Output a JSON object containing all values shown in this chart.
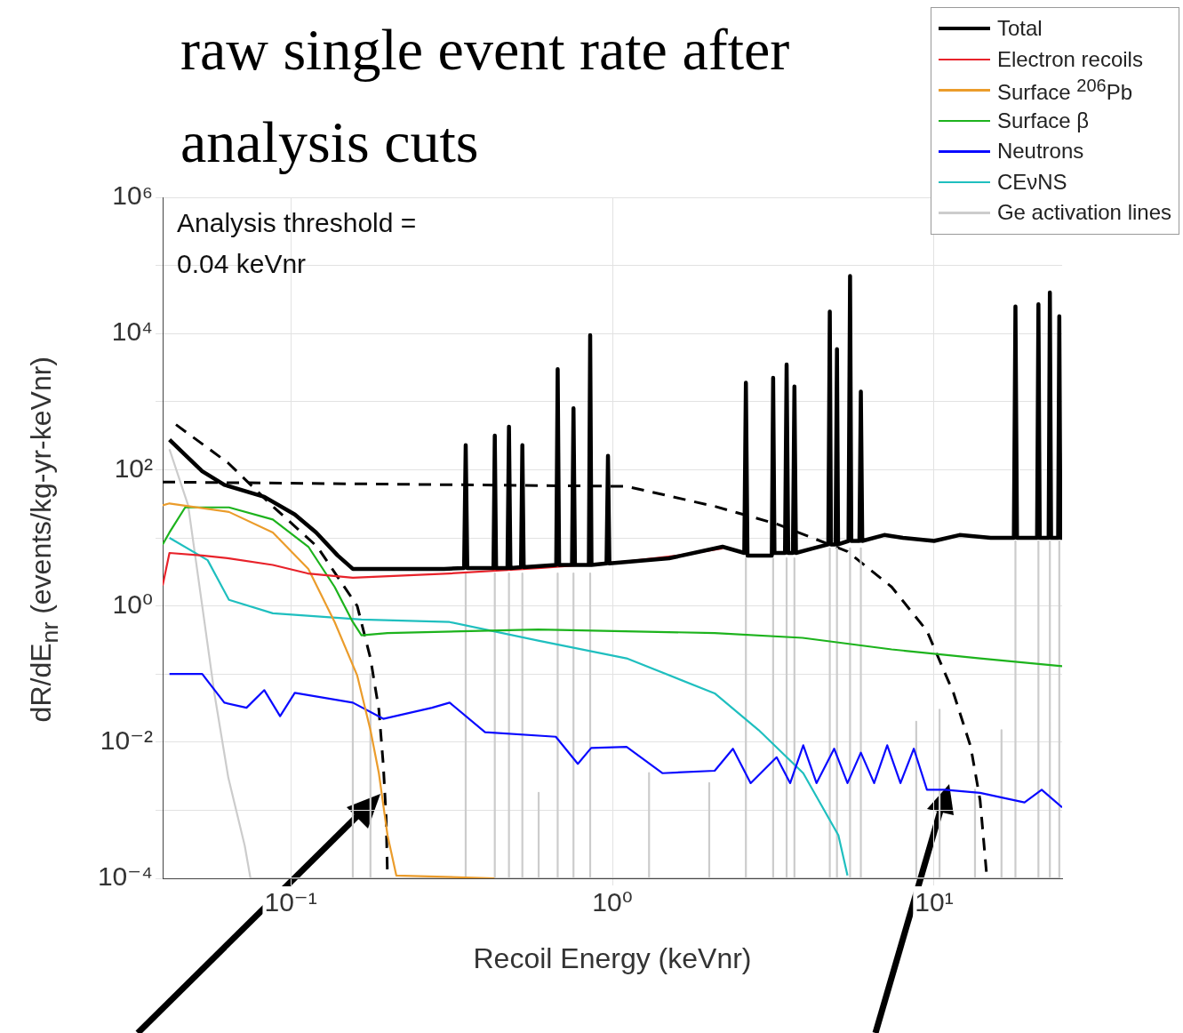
{
  "chart_data": {
    "type": "line",
    "title": "raw single event rate after analysis cuts",
    "xlabel": "Recoil Energy (keVnr)",
    "ylabel": "dR/dE$_{nr}$ (events/kg-yr-keVnr)",
    "log": "xy",
    "grid": true,
    "legend": "top right",
    "marker": "none",
    "xlim": [
      0.04,
      25
    ],
    "ylim": [
      0.0001,
      1000000
    ],
    "xticks": [
      {
        "value": 0.1,
        "label": "10⁻¹"
      },
      {
        "value": 1,
        "label": "10⁰"
      },
      {
        "value": 10,
        "label": "10¹"
      }
    ],
    "yticks": [
      {
        "value": 0.0001,
        "label": "10⁻⁴"
      },
      {
        "value": 0.001,
        "label": null
      },
      {
        "value": 0.01,
        "label": "10⁻²"
      },
      {
        "value": 0.1,
        "label": null
      },
      {
        "value": 1,
        "label": "10⁰"
      },
      {
        "value": 10,
        "label": null
      },
      {
        "value": 100,
        "label": "10²"
      },
      {
        "value": 1000,
        "label": null
      },
      {
        "value": 10000,
        "label": "10⁴"
      },
      {
        "value": 100000,
        "label": null
      },
      {
        "value": 1000000,
        "label": "10⁶"
      }
    ],
    "annotations": [
      "Analysis threshold =\n0.04 keVnr"
    ],
    "series": [
      {
        "name": "Total",
        "color": "#000000",
        "x": [
          0.042,
          0.0531,
          0.0622,
          0.0828,
          0.103,
          0.12,
          0.14,
          0.156,
          0.3,
          0.346,
          0.35,
          0.354,
          0.427,
          0.431,
          0.435,
          0.472,
          0.477,
          0.482,
          0.52,
          0.525,
          0.53,
          0.669,
          0.676,
          0.683,
          0.749,
          0.757,
          0.765,
          0.845,
          0.853,
          0.861,
          0.959,
          0.969,
          0.979,
          1.5,
          2.2,
          2.57,
          2.6,
          2.63,
          3.13,
          3.16,
          3.19,
          3.44,
          3.48,
          3.52,
          3.64,
          3.68,
          3.72,
          4.2,
          4.69,
          4.74,
          4.78,
          4.94,
          4.99,
          5.03,
          5.42,
          5.48,
          5.53,
          5.86,
          5.92,
          5.98,
          7,
          8,
          10,
          12,
          15,
          17.7,
          17.9,
          18.1,
          20.9,
          21.1,
          21.3,
          22.7,
          22.9,
          23.1,
          24.3,
          24.5,
          24.7,
          25
        ],
        "values": [
          275,
          95,
          60,
          40,
          22,
          12,
          5.5,
          3.5,
          3.5,
          3.6,
          230,
          3.6,
          3.6,
          316,
          3.6,
          3.6,
          430,
          3.6,
          3.7,
          230,
          3.7,
          4,
          3000,
          4,
          4,
          800,
          4,
          4,
          9500,
          4,
          4.2,
          160,
          4.2,
          5,
          7.4,
          6,
          1900,
          5.5,
          5.5,
          2240,
          6,
          6,
          3500,
          6,
          6,
          1670,
          6,
          7,
          8,
          21000,
          8,
          8,
          5900,
          8,
          9,
          70000,
          9,
          9,
          1400,
          9,
          11,
          10,
          9,
          11,
          10,
          10,
          25000,
          10,
          10,
          27000,
          10,
          10,
          40000,
          10,
          10,
          18000,
          10,
          10
        ]
      },
      {
        "name": "Electron recoils",
        "color": "#e8222a",
        "x": [
          0.04,
          0.042,
          0.0531,
          0.0643,
          0.088,
          0.113,
          0.156,
          0.312,
          0.6,
          1.107,
          1.6,
          2.2
        ],
        "values": [
          2,
          6,
          5.5,
          5,
          4,
          3,
          2.6,
          3,
          3.6,
          4.5,
          5.5,
          7
        ]
      },
      {
        "name": "Surface $^{206}$Pb",
        "color": "#eb9c2b",
        "x": [
          0.04,
          0.042,
          0.0643,
          0.088,
          0.1135,
          0.137,
          0.161,
          0.177,
          0.188,
          0.2,
          0.213,
          0.43
        ],
        "values": [
          30,
          32,
          24,
          12,
          3.5,
          0.58,
          0.095,
          0.015,
          0.0035,
          0.00043,
          0.00011,
          0.0001
        ]
      },
      {
        "name": "Surface β",
        "color": "#1db31d",
        "x": [
          0.04,
          0.042,
          0.047,
          0.0643,
          0.088,
          0.1135,
          0.137,
          0.156,
          0.166,
          0.2,
          0.588,
          2.08,
          3.9,
          7.38,
          13.9,
          25
        ],
        "values": [
          8,
          12,
          28,
          28,
          18.6,
          7.4,
          1.9,
          0.58,
          0.37,
          0.4,
          0.45,
          0.4,
          0.34,
          0.23,
          0.17,
          0.13
        ]
      },
      {
        "name": "Neutrons",
        "color": "#0a0aff",
        "x": [
          0.042,
          0.0531,
          0.0622,
          0.0729,
          0.0828,
          0.0927,
          0.103,
          0.156,
          0.194,
          0.275,
          0.312,
          0.402,
          0.667,
          0.781,
          0.859,
          1.107,
          1.43,
          2.08,
          2.37,
          2.69,
          3.24,
          3.57,
          3.92,
          4.31,
          4.89,
          5.38,
          5.92,
          6.51,
          7.15,
          7.86,
          8.65,
          9.5,
          10.8,
          13.9,
          19.1,
          21.6,
          25
        ],
        "values": [
          0.1,
          0.1,
          0.038,
          0.032,
          0.058,
          0.024,
          0.053,
          0.038,
          0.022,
          0.032,
          0.038,
          0.014,
          0.012,
          0.0048,
          0.0082,
          0.0085,
          0.0035,
          0.0038,
          0.008,
          0.0025,
          0.006,
          0.0025,
          0.009,
          0.0025,
          0.008,
          0.0025,
          0.007,
          0.0025,
          0.009,
          0.0025,
          0.008,
          0.002,
          0.002,
          0.0018,
          0.0013,
          0.002,
          0.0011
        ]
      },
      {
        "name": "CEνNS",
        "color": "#1fbfbf",
        "x": [
          0.042,
          0.0552,
          0.0643,
          0.088,
          0.166,
          0.312,
          0.588,
          1.107,
          2.08,
          2.85,
          3.92,
          5.04,
          5.38
        ],
        "values": [
          10,
          4.7,
          1.23,
          0.78,
          0.63,
          0.58,
          0.31,
          0.17,
          0.052,
          0.015,
          0.0035,
          0.00043,
          0.00011
        ]
      },
      {
        "name": "Ge activation lines",
        "color": "#cccccc",
        "x": [
          0.042,
          0.048,
          0.0531,
          0.058,
          0.064,
          0.072,
          0.075,
          0.156,
          0.156,
          0.156,
          0.177,
          0.177,
          0.177,
          0.35,
          0.35,
          0.35,
          0.431,
          0.431,
          0.431,
          0.477,
          0.477,
          0.477,
          0.525,
          0.525,
          0.525,
          0.59,
          0.59,
          0.59,
          0.676,
          0.676,
          0.676,
          0.757,
          0.757,
          0.757,
          0.853,
          0.853,
          0.853,
          1.3,
          1.3,
          1.3,
          2,
          2,
          2,
          2.6,
          2.6,
          2.6,
          3.16,
          3.16,
          3.16,
          3.48,
          3.48,
          3.48,
          3.68,
          3.68,
          3.68,
          4.74,
          4.74,
          4.74,
          4.99,
          4.99,
          4.99,
          5.48,
          5.48,
          5.48,
          5.92,
          5.92,
          5.92,
          8.8,
          8.8,
          8.8,
          10.4,
          10.4,
          10.4,
          13.4,
          13.4,
          13.4,
          16.2,
          16.2,
          16.2,
          17.9,
          17.9,
          17.9,
          21.1,
          21.1,
          21.1,
          22.9,
          22.9,
          22.9,
          24.5,
          24.5,
          24.5
        ],
        "values": [
          200,
          30,
          1,
          0.05,
          0.003,
          0.0003,
          0.0001,
          0.0001,
          1,
          0.0001,
          0.0001,
          0.1,
          0.0001,
          0.0001,
          3,
          0.0001,
          0.0001,
          3,
          0.0001,
          0.0001,
          3,
          0.0001,
          0.0001,
          3,
          0.0001,
          0.0001,
          0.0018,
          0.0001,
          0.0001,
          3,
          0.0001,
          0.0001,
          3,
          0.0001,
          0.0001,
          3,
          0.0001,
          0.0001,
          0.0035,
          0.0001,
          0.0001,
          0.0025,
          0.0001,
          0.0001,
          5,
          0.0001,
          0.0001,
          5,
          0.0001,
          0.0001,
          5,
          0.0001,
          0.0001,
          5,
          0.0001,
          0.0001,
          7,
          0.0001,
          0.0001,
          7,
          0.0001,
          0.0001,
          7,
          0.0001,
          0.0001,
          7,
          0.0001,
          0.0001,
          0.02,
          0.0001,
          0.0001,
          0.03,
          0.0001,
          0.0001,
          0.002,
          0.0001,
          0.0001,
          0.015,
          0.0001,
          0.0001,
          9,
          0.0001,
          0.0001,
          9,
          0.0001,
          0.0001,
          9,
          0.0001,
          0.0001,
          9,
          0.0001
        ]
      },
      {
        "color": "#000000",
        "line_style": "dashed",
        "x": [
          0.044,
          0.064,
          0.088,
          0.121,
          0.161,
          0.177,
          0.188,
          0.194,
          0.198,
          0.2
        ],
        "values": [
          460,
          125,
          29,
          7.4,
          1,
          0.17,
          0.03,
          0.0047,
          0.0008,
          0.0001
        ]
      },
      {
        "color": "#000000",
        "line_style": "dashed",
        "x": [
          0.04,
          1.107,
          2.08,
          3.24,
          5.38,
          7.38,
          9.5,
          11.5,
          13,
          13.9,
          14.6
        ],
        "values": [
          66,
          57,
          29,
          16,
          6.3,
          1.9,
          0.43,
          0.052,
          0.0085,
          0.0014,
          0.0001
        ]
      }
    ]
  }
}
